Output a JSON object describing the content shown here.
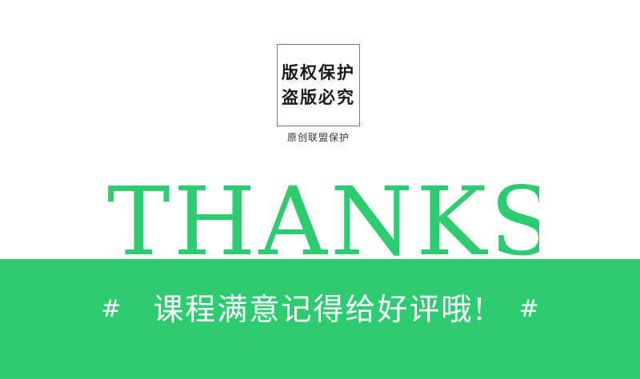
{
  "stamp": {
    "line1": "版权保护",
    "line2": "盗版必究",
    "caption": "原创联盟保护"
  },
  "headline": "THANKS",
  "banner": {
    "hash_left": "#",
    "message": "课程满意记得给好评哦!",
    "hash_right": "#"
  },
  "colors": {
    "accent": "#2ecc71",
    "background": "#ffffff",
    "banner_text": "#ffffff"
  }
}
